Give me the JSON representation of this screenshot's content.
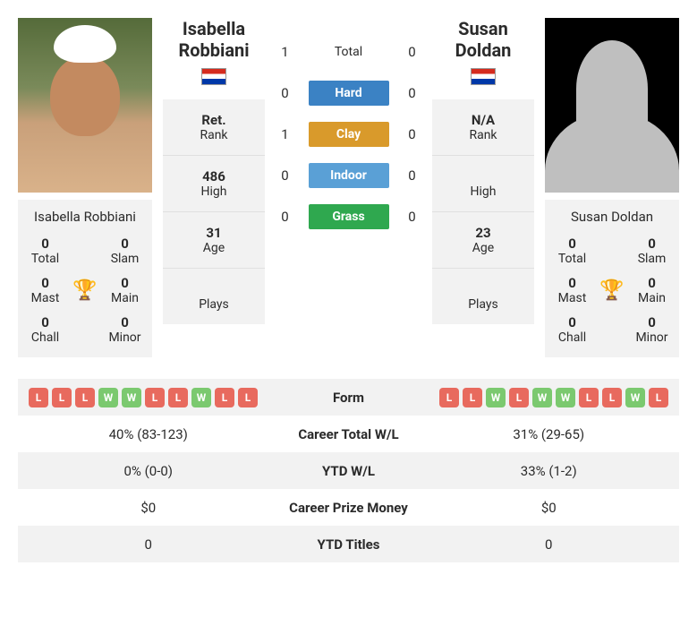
{
  "players": {
    "left": {
      "name_short": "Isabella Robbiani",
      "name_first": "Isabella",
      "name_last": "Robbiani",
      "titles": {
        "total": {
          "n": "0",
          "l": "Total"
        },
        "slam": {
          "n": "0",
          "l": "Slam"
        },
        "mast": {
          "n": "0",
          "l": "Mast"
        },
        "main": {
          "n": "0",
          "l": "Main"
        },
        "chall": {
          "n": "0",
          "l": "Chall"
        },
        "minor": {
          "n": "0",
          "l": "Minor"
        }
      },
      "stats": {
        "rank": {
          "v": "Ret.",
          "l": "Rank"
        },
        "high": {
          "v": "486",
          "l": "High"
        },
        "age": {
          "v": "31",
          "l": "Age"
        },
        "plays": {
          "v": "",
          "l": "Plays"
        }
      },
      "form": [
        "L",
        "L",
        "L",
        "W",
        "W",
        "L",
        "L",
        "W",
        "L",
        "L"
      ],
      "career_wl": "40% (83-123)",
      "ytd_wl": "0% (0-0)",
      "prize": "$0",
      "ytd_titles": "0"
    },
    "right": {
      "name_short": "Susan Doldan",
      "name_first": "Susan",
      "name_last": "Doldan",
      "titles": {
        "total": {
          "n": "0",
          "l": "Total"
        },
        "slam": {
          "n": "0",
          "l": "Slam"
        },
        "mast": {
          "n": "0",
          "l": "Mast"
        },
        "main": {
          "n": "0",
          "l": "Main"
        },
        "chall": {
          "n": "0",
          "l": "Chall"
        },
        "minor": {
          "n": "0",
          "l": "Minor"
        }
      },
      "stats": {
        "rank": {
          "v": "N/A",
          "l": "Rank"
        },
        "high": {
          "v": "",
          "l": "High"
        },
        "age": {
          "v": "23",
          "l": "Age"
        },
        "plays": {
          "v": "",
          "l": "Plays"
        }
      },
      "form": [
        "L",
        "L",
        "W",
        "L",
        "W",
        "W",
        "L",
        "L",
        "W",
        "L"
      ],
      "career_wl": "31% (29-65)",
      "ytd_wl": "33% (1-2)",
      "prize": "$0",
      "ytd_titles": "0"
    }
  },
  "h2h": {
    "rows": [
      {
        "l": "1",
        "label": "Total",
        "r": "0",
        "bg": "",
        "plain": true
      },
      {
        "l": "0",
        "label": "Hard",
        "r": "0",
        "bg": "#3b82c4"
      },
      {
        "l": "1",
        "label": "Clay",
        "r": "0",
        "bg": "#d99a2b"
      },
      {
        "l": "0",
        "label": "Indoor",
        "r": "0",
        "bg": "#5aa0d6"
      },
      {
        "l": "0",
        "label": "Grass",
        "r": "0",
        "bg": "#2fa84f"
      }
    ]
  },
  "table_labels": {
    "form": "Form",
    "career_wl": "Career Total W/L",
    "ytd_wl": "YTD W/L",
    "prize": "Career Prize Money",
    "ytd_titles": "YTD Titles"
  },
  "colors": {
    "win_badge": "#7bc96f",
    "loss_badge": "#e86a5e",
    "panel_bg": "#f2f2f2",
    "trophy": "#3b82c4"
  }
}
